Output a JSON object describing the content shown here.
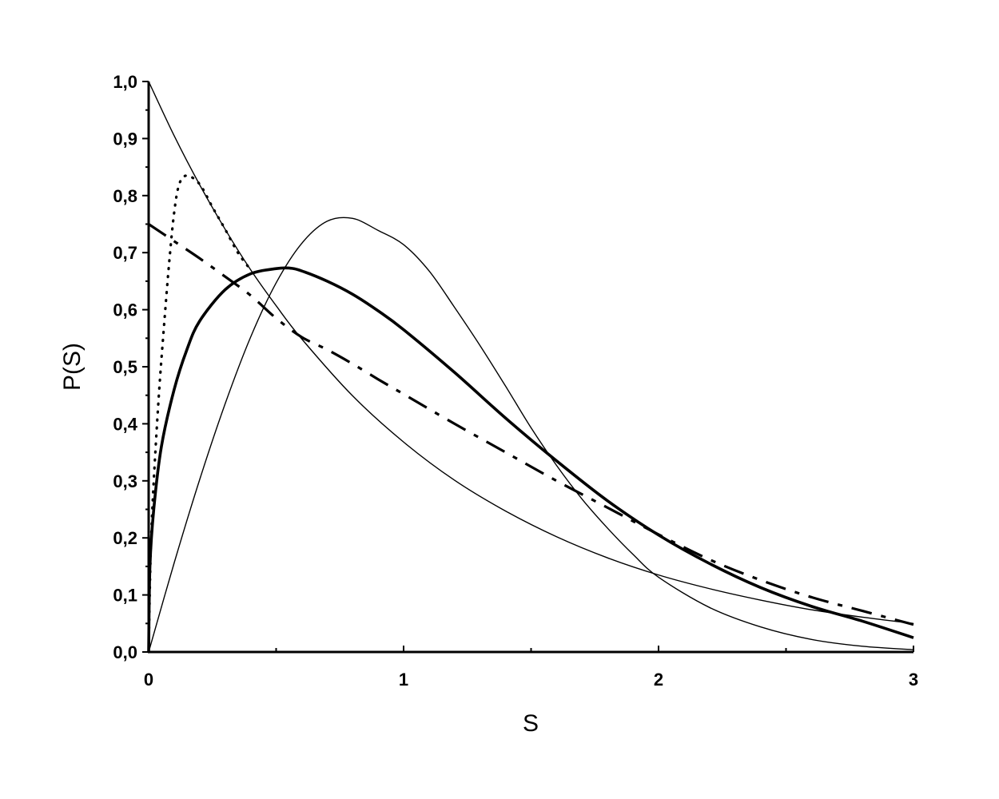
{
  "chart_data": {
    "type": "line",
    "title": "",
    "xlabel": "S",
    "ylabel": "P(S)",
    "xlim": [
      0,
      3
    ],
    "ylim": [
      0,
      1
    ],
    "grid": false,
    "legend": "none",
    "x_ticks": [
      {
        "value": 0,
        "label": "0"
      },
      {
        "value": 1,
        "label": "1"
      },
      {
        "value": 2,
        "label": "2"
      },
      {
        "value": 3,
        "label": "3"
      }
    ],
    "y_ticks": [
      {
        "value": 0.0,
        "label": "0,0"
      },
      {
        "value": 0.1,
        "label": "0,1"
      },
      {
        "value": 0.2,
        "label": "0,2"
      },
      {
        "value": 0.3,
        "label": "0,3"
      },
      {
        "value": 0.4,
        "label": "0,4"
      },
      {
        "value": 0.5,
        "label": "0,5"
      },
      {
        "value": 0.6,
        "label": "0,6"
      },
      {
        "value": 0.7,
        "label": "0,7"
      },
      {
        "value": 0.8,
        "label": "0,8"
      },
      {
        "value": 0.9,
        "label": "0,9"
      },
      {
        "value": 1.0,
        "label": "1,0"
      }
    ],
    "series": [
      {
        "style": "thin-solid",
        "color": "#000000",
        "points": [
          [
            0,
            1.0
          ],
          [
            0.1,
            0.905
          ],
          [
            0.2,
            0.819
          ],
          [
            0.3,
            0.741
          ],
          [
            0.4,
            0.67
          ],
          [
            0.5,
            0.607
          ],
          [
            0.6,
            0.549
          ],
          [
            0.8,
            0.449
          ],
          [
            1.0,
            0.368
          ],
          [
            1.2,
            0.301
          ],
          [
            1.4,
            0.247
          ],
          [
            1.6,
            0.202
          ],
          [
            1.8,
            0.165
          ],
          [
            2.0,
            0.135
          ],
          [
            2.2,
            0.111
          ],
          [
            2.4,
            0.091
          ],
          [
            2.6,
            0.074
          ],
          [
            2.8,
            0.061
          ],
          [
            3.0,
            0.05
          ]
        ]
      },
      {
        "style": "thin-solid",
        "color": "#000000",
        "points": [
          [
            0,
            0
          ],
          [
            0.1,
            0.156
          ],
          [
            0.2,
            0.302
          ],
          [
            0.3,
            0.435
          ],
          [
            0.4,
            0.552
          ],
          [
            0.5,
            0.647
          ],
          [
            0.6,
            0.716
          ],
          [
            0.7,
            0.755
          ],
          [
            0.8,
            0.76
          ],
          [
            0.9,
            0.739
          ],
          [
            1.0,
            0.714
          ],
          [
            1.1,
            0.668
          ],
          [
            1.2,
            0.604
          ],
          [
            1.3,
            0.537
          ],
          [
            1.4,
            0.466
          ],
          [
            1.5,
            0.393
          ],
          [
            1.6,
            0.327
          ],
          [
            1.7,
            0.268
          ],
          [
            1.8,
            0.217
          ],
          [
            1.9,
            0.171
          ],
          [
            2.0,
            0.131
          ],
          [
            2.2,
            0.078
          ],
          [
            2.4,
            0.044
          ],
          [
            2.6,
            0.022
          ],
          [
            2.8,
            0.01
          ],
          [
            3.0,
            0.004
          ]
        ]
      },
      {
        "style": "thick-solid",
        "color": "#000000",
        "points": [
          [
            0,
            0
          ],
          [
            0.005,
            0.15
          ],
          [
            0.02,
            0.25
          ],
          [
            0.05,
            0.36
          ],
          [
            0.1,
            0.46
          ],
          [
            0.15,
            0.53
          ],
          [
            0.2,
            0.58
          ],
          [
            0.3,
            0.635
          ],
          [
            0.4,
            0.663
          ],
          [
            0.5,
            0.672
          ],
          [
            0.55,
            0.673
          ],
          [
            0.6,
            0.668
          ],
          [
            0.7,
            0.65
          ],
          [
            0.8,
            0.627
          ],
          [
            0.9,
            0.598
          ],
          [
            1.0,
            0.565
          ],
          [
            1.2,
            0.49
          ],
          [
            1.4,
            0.41
          ],
          [
            1.6,
            0.335
          ],
          [
            1.8,
            0.265
          ],
          [
            2.0,
            0.205
          ],
          [
            2.2,
            0.155
          ],
          [
            2.4,
            0.113
          ],
          [
            2.6,
            0.08
          ],
          [
            2.8,
            0.054
          ],
          [
            3.0,
            0.025
          ]
        ]
      },
      {
        "style": "dotted",
        "color": "#000000",
        "points": [
          [
            0,
            0
          ],
          [
            0.005,
            0.12
          ],
          [
            0.01,
            0.2
          ],
          [
            0.02,
            0.3
          ],
          [
            0.04,
            0.45
          ],
          [
            0.06,
            0.57
          ],
          [
            0.08,
            0.68
          ],
          [
            0.1,
            0.77
          ],
          [
            0.12,
            0.82
          ],
          [
            0.15,
            0.835
          ],
          [
            0.2,
            0.82
          ],
          [
            0.25,
            0.78
          ],
          [
            0.3,
            0.741
          ],
          [
            0.35,
            0.7
          ],
          [
            0.4,
            0.67
          ]
        ]
      },
      {
        "style": "dashed",
        "color": "#000000",
        "points": [
          [
            0,
            0.75
          ],
          [
            0.1,
            0.72
          ],
          [
            0.2,
            0.69
          ],
          [
            0.3,
            0.658
          ],
          [
            0.4,
            0.625
          ],
          [
            0.5,
            0.585
          ],
          [
            0.6,
            0.552
          ],
          [
            0.7,
            0.53
          ],
          [
            0.8,
            0.505
          ],
          [
            0.9,
            0.478
          ],
          [
            1.0,
            0.452
          ],
          [
            1.2,
            0.4
          ],
          [
            1.4,
            0.35
          ],
          [
            1.6,
            0.3
          ],
          [
            1.8,
            0.253
          ],
          [
            2.0,
            0.206
          ],
          [
            2.2,
            0.162
          ],
          [
            2.4,
            0.126
          ],
          [
            2.6,
            0.096
          ],
          [
            2.8,
            0.072
          ],
          [
            3.0,
            0.048
          ]
        ]
      }
    ]
  }
}
